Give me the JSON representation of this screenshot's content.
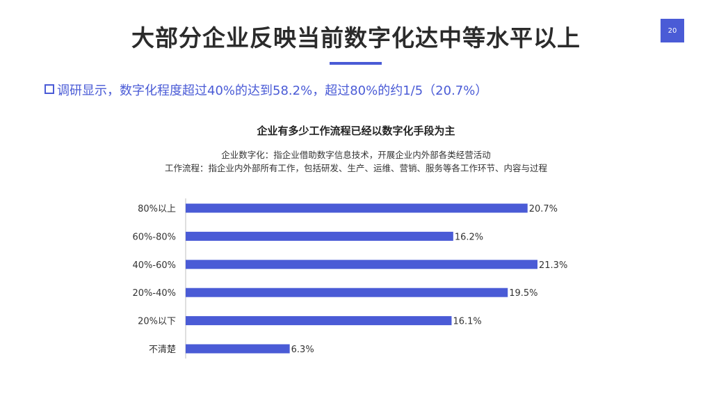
{
  "slide": {
    "title": "大部分企业反映当前数字化达中等水平以上",
    "page_number": "20",
    "subtitle": "调研显示，数字化程度超过40%的达到58.2%，超过80%的约1/5（20.7%）",
    "accent_color": "#4a5bd6"
  },
  "notes": {
    "line1": "企业数字化：指企业借助数字信息技术，开展企业内外部各类经营活动",
    "line2": "工作流程：指企业内外部所有工作，包括研发、生产、运维、营销、服务等各工作环节、内容与过程"
  },
  "chart_data": {
    "type": "bar",
    "orientation": "horizontal",
    "title": "企业有多少工作流程已经以数字化手段为主",
    "categories": [
      "80%以上",
      "60%-80%",
      "40%-60%",
      "20%-40%",
      "20%以下",
      "不清楚"
    ],
    "values": [
      20.7,
      16.2,
      21.3,
      19.5,
      16.1,
      6.3
    ],
    "value_labels": [
      "20.7%",
      "16.2%",
      "21.3%",
      "19.5%",
      "16.1%",
      "6.3%"
    ],
    "unit": "%",
    "xlim": [
      0,
      21.3
    ],
    "bar_color": "#4a5bd6",
    "grid": false,
    "axis_line": true
  }
}
